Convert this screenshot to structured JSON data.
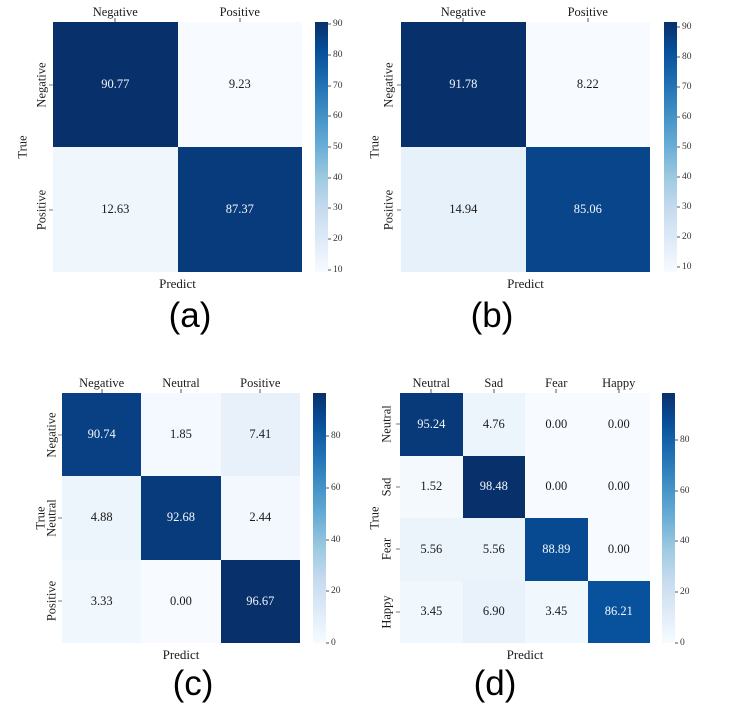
{
  "figure": {
    "background": "#ffffff",
    "colormap": {
      "name": "Blues",
      "dark_end": "#08306b",
      "light_end": "#f7fbff"
    }
  },
  "chart_data": [
    {
      "id": "a",
      "type": "heatmap",
      "caption": "(a)",
      "xlabel": "Predict",
      "ylabel": "True",
      "x_categories": [
        "Negative",
        "Positive"
      ],
      "y_categories": [
        "Negative",
        "Positive"
      ],
      "values": [
        [
          90.77,
          9.23
        ],
        [
          12.63,
          87.37
        ]
      ],
      "vmin": 9.23,
      "vmax": 90.77,
      "colorbar_ticks": [
        90,
        80,
        70,
        60,
        50,
        40,
        30,
        20,
        10
      ],
      "legend_position": "right",
      "grid": false
    },
    {
      "id": "b",
      "type": "heatmap",
      "caption": "(b)",
      "xlabel": "Predict",
      "ylabel": "True",
      "x_categories": [
        "Negative",
        "Positive"
      ],
      "y_categories": [
        "Negative",
        "Positive"
      ],
      "values": [
        [
          91.78,
          8.22
        ],
        [
          14.94,
          85.06
        ]
      ],
      "vmin": 8.22,
      "vmax": 91.78,
      "colorbar_ticks": [
        90,
        80,
        70,
        60,
        50,
        40,
        30,
        20,
        10
      ],
      "legend_position": "right",
      "grid": false
    },
    {
      "id": "c",
      "type": "heatmap",
      "caption": "(c)",
      "xlabel": "Predict",
      "ylabel": "True",
      "x_categories": [
        "Negative",
        "Neutral",
        "Positive"
      ],
      "y_categories": [
        "Negative",
        "Neutral",
        "Positive"
      ],
      "values": [
        [
          90.74,
          1.85,
          7.41
        ],
        [
          4.88,
          92.68,
          2.44
        ],
        [
          3.33,
          0.0,
          96.67
        ]
      ],
      "vmin": 0.0,
      "vmax": 96.67,
      "colorbar_ticks": [
        80,
        60,
        40,
        20,
        0
      ],
      "legend_position": "right",
      "grid": false
    },
    {
      "id": "d",
      "type": "heatmap",
      "caption": "(d)",
      "xlabel": "Predict",
      "ylabel": "True",
      "x_categories": [
        "Neutral",
        "Sad",
        "Fear",
        "Happy"
      ],
      "y_categories": [
        "Neutral",
        "Sad",
        "Fear",
        "Happy"
      ],
      "values": [
        [
          95.24,
          4.76,
          0.0,
          0.0
        ],
        [
          1.52,
          98.48,
          0.0,
          0.0
        ],
        [
          5.56,
          5.56,
          88.89,
          0.0
        ],
        [
          3.45,
          6.9,
          3.45,
          86.21
        ]
      ],
      "vmin": 0.0,
      "vmax": 98.48,
      "colorbar_ticks": [
        80,
        60,
        40,
        20,
        0
      ],
      "legend_position": "right",
      "grid": false
    }
  ]
}
